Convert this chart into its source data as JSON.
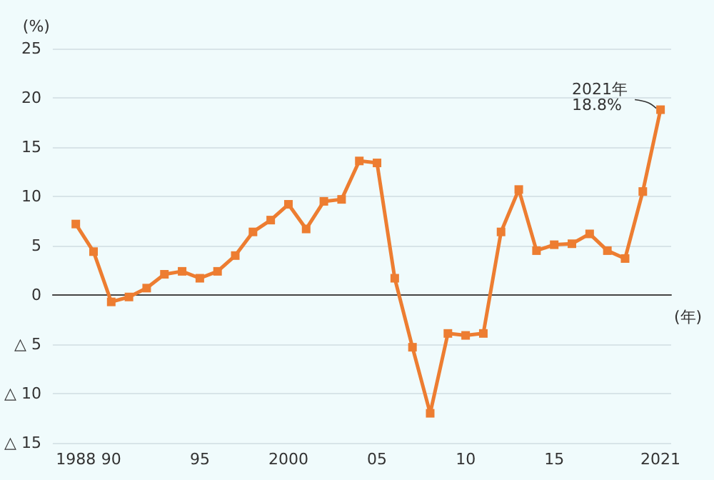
{
  "chart_data": {
    "type": "line",
    "xlabel": "(年)",
    "ylabel": "(%)",
    "x": [
      1988,
      1989,
      1990,
      1991,
      1992,
      1993,
      1994,
      1995,
      1996,
      1997,
      1998,
      1999,
      2000,
      2001,
      2002,
      2003,
      2004,
      2005,
      2006,
      2007,
      2008,
      2009,
      2010,
      2011,
      2012,
      2013,
      2014,
      2015,
      2016,
      2017,
      2018,
      2019,
      2020,
      2021
    ],
    "series": [
      {
        "color": "#ed7d31",
        "values": [
          7.2,
          4.4,
          -0.7,
          -0.2,
          0.7,
          2.1,
          2.4,
          1.7,
          2.4,
          4.0,
          6.4,
          7.6,
          9.2,
          6.7,
          9.5,
          9.7,
          13.6,
          13.4,
          1.7,
          -5.3,
          -12.0,
          -3.9,
          -4.1,
          -3.9,
          6.4,
          10.7,
          4.5,
          5.1,
          5.2,
          6.2,
          4.5,
          3.7,
          10.5,
          18.8
        ]
      }
    ],
    "xlim": [
      1986.7,
      2021.6
    ],
    "xticks": [
      {
        "value": 1988,
        "label": "1988"
      },
      {
        "value": 1990,
        "label": "90"
      },
      {
        "value": 1995,
        "label": "95"
      },
      {
        "value": 2000,
        "label": "2000"
      },
      {
        "value": 2005,
        "label": "05"
      },
      {
        "value": 2010,
        "label": "10"
      },
      {
        "value": 2015,
        "label": "15"
      },
      {
        "value": 2021,
        "label": "2021"
      }
    ],
    "ylim": [
      -15,
      25
    ],
    "yticks": [
      {
        "value": -15,
        "label": "△ 15"
      },
      {
        "value": -10,
        "label": "△ 10"
      },
      {
        "value": -5,
        "label": "△ 5"
      },
      0,
      5,
      10,
      15,
      20,
      25
    ],
    "annotations": [
      {
        "text": "2021年\n18.8%",
        "x": 2021,
        "y": 18.8
      }
    ],
    "grid": "y",
    "marker": "square",
    "line_style": "solid"
  }
}
